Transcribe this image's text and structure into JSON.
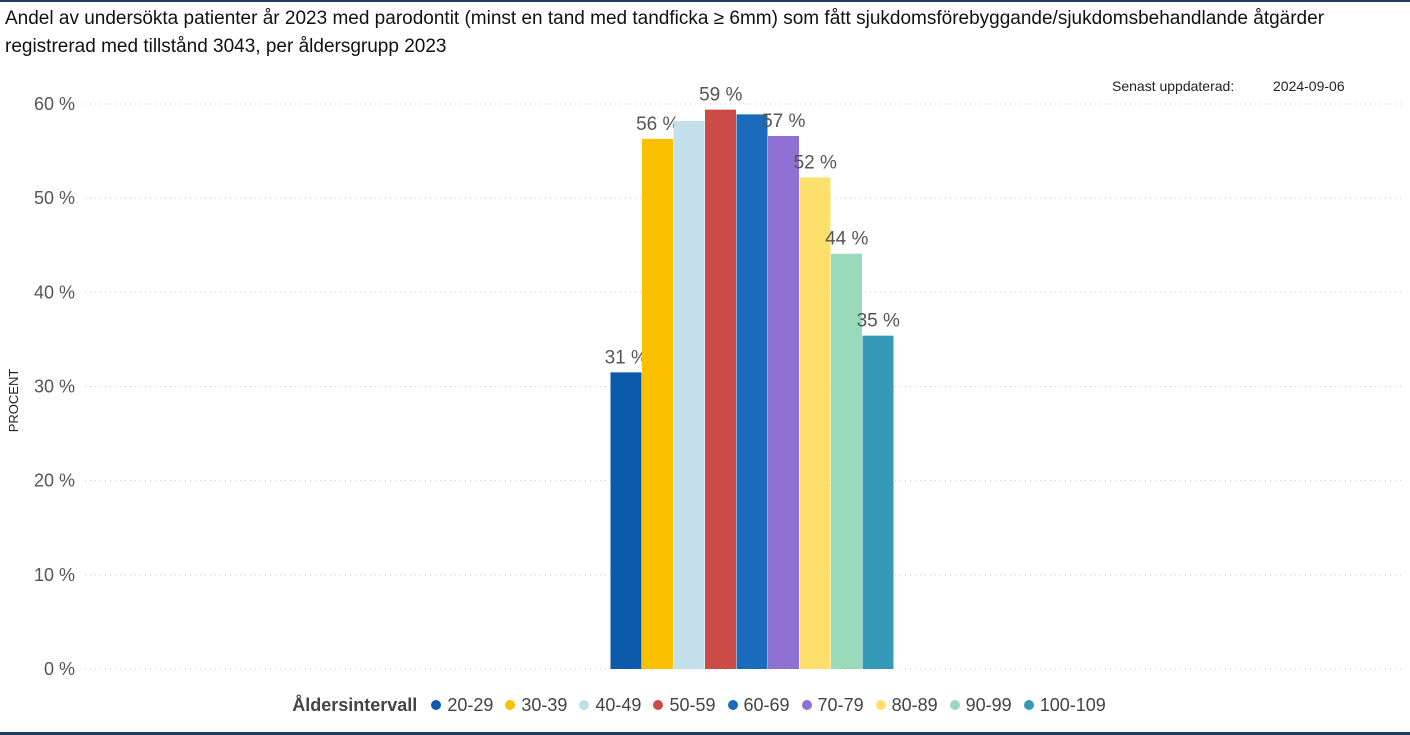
{
  "header": {
    "title": "Andel av undersökta patienter år 2023 med parodontit (minst en tand med tandficka ≥ 6mm) som fått sjukdomsförebyggande/sjukdomsbehandlande åtgärder registrerad med tillstånd 3043, per åldersgrupp 2023",
    "updated_label": "Senast uppdaterad:",
    "updated_date": "2024-09-06"
  },
  "chart_data": {
    "type": "bar",
    "title": "Andel av undersökta patienter år 2023 med parodontit (minst en tand med tandficka ≥ 6mm) som fått sjukdomsförebyggande/sjukdomsbehandlande åtgärder registrerad med tillstånd 3043, per åldersgrupp 2023",
    "xlabel": "",
    "ylabel": "PROCENT",
    "ylim": [
      0,
      60
    ],
    "yticks": [
      "0 %",
      "10 %",
      "20 %",
      "30 %",
      "40 %",
      "50 %",
      "60 %"
    ],
    "grid": true,
    "legend_position": "bottom",
    "legend_title": "Åldersintervall",
    "series": [
      {
        "name": "20-29",
        "value": 31.5,
        "label": "31 %",
        "color": "#0b5aab"
      },
      {
        "name": "30-39",
        "value": 56.3,
        "label": "56 %",
        "color": "#fbc000"
      },
      {
        "name": "40-49",
        "value": 58.2,
        "label": "",
        "color": "#c3dfea"
      },
      {
        "name": "50-59",
        "value": 59.4,
        "label": "59 %",
        "color": "#cd4b46"
      },
      {
        "name": "60-69",
        "value": 58.9,
        "label": "",
        "color": "#1a6bbb"
      },
      {
        "name": "70-79",
        "value": 56.6,
        "label": "57 %",
        "color": "#8f70d3"
      },
      {
        "name": "80-89",
        "value": 52.2,
        "label": "52 %",
        "color": "#fde06b"
      },
      {
        "name": "90-99",
        "value": 44.1,
        "label": "44 %",
        "color": "#98dab9"
      },
      {
        "name": "100-109",
        "value": 35.4,
        "label": "35 %",
        "color": "#359ab8"
      }
    ]
  }
}
